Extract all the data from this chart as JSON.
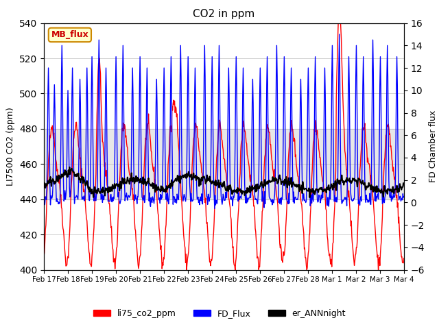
{
  "title": "CO2 in ppm",
  "ylabel_left": "LI7500 CO2 (ppm)",
  "ylabel_right": "FD Chamber flux",
  "ylim_left": [
    400,
    540
  ],
  "ylim_right": [
    -6,
    16
  ],
  "yticks_left": [
    400,
    420,
    440,
    460,
    480,
    500,
    520,
    540
  ],
  "yticks_right": [
    -6,
    -4,
    -2,
    0,
    2,
    4,
    6,
    8,
    10,
    12,
    14,
    16
  ],
  "shaded_band": [
    440,
    480
  ],
  "annotation_box": "MB_flux",
  "legend_labels": [
    "li75_co2_ppm",
    "FD_Flux",
    "er_ANNnight"
  ],
  "legend_colors": [
    "#ff0000",
    "#0000ff",
    "#000000"
  ],
  "line_colors": {
    "li75": "#ff0000",
    "fd_flux": "#0000ff",
    "er_ann": "#000000"
  },
  "background_color": "#ffffff",
  "x_tick_labels": [
    "Feb 17",
    "Feb 18",
    "Feb 19",
    "Feb 20",
    "Feb 21",
    "Feb 22",
    "Feb 23",
    "Feb 24",
    "Feb 25",
    "Feb 26",
    "Feb 27",
    "Feb 28",
    "Mar 1",
    "Mar 2",
    "Mar 3",
    "Mar 4"
  ],
  "num_days": 15,
  "points_per_day": 48
}
